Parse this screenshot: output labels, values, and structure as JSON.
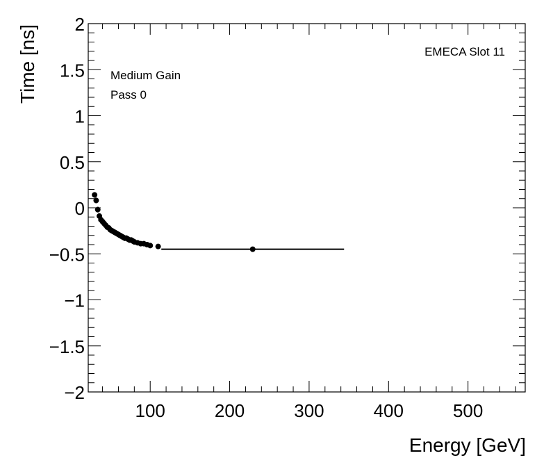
{
  "chart_data": {
    "type": "scatter",
    "title": "",
    "xlabel": "Energy [GeV]",
    "ylabel": "Time [ns]",
    "xlim": [
      22,
      572
    ],
    "ylim": [
      -2,
      2
    ],
    "grid": false,
    "x_major_ticks": [
      100,
      200,
      300,
      400,
      500
    ],
    "x_tick_labels": [
      "100",
      "200",
      "300",
      "400",
      "500"
    ],
    "y_major_ticks": [
      -2,
      -1.5,
      -1,
      -0.5,
      0,
      0.5,
      1,
      1.5,
      2
    ],
    "y_tick_labels": [
      "−2",
      "−1.5",
      "−1",
      "−0.5",
      "0",
      "0.5",
      "1",
      "1.5",
      "2"
    ],
    "annotations": {
      "top_right": "EMECA Slot 11",
      "line1": "Medium Gain",
      "line2": "Pass 0"
    },
    "series": [
      {
        "name": "points",
        "x": [
          30,
          32,
          34,
          36,
          38,
          40,
          42,
          44,
          46,
          48,
          50,
          52,
          54,
          56,
          58,
          60,
          62,
          64,
          66,
          68,
          70,
          72,
          74,
          76,
          78,
          80,
          84,
          88,
          92,
          96,
          100,
          110,
          229
        ],
        "y": [
          0.14,
          0.08,
          -0.02,
          -0.09,
          -0.13,
          -0.15,
          -0.17,
          -0.19,
          -0.21,
          -0.22,
          -0.24,
          -0.25,
          -0.26,
          -0.27,
          -0.28,
          -0.29,
          -0.3,
          -0.31,
          -0.32,
          -0.33,
          -0.33,
          -0.34,
          -0.35,
          -0.35,
          -0.36,
          -0.37,
          -0.38,
          -0.39,
          -0.39,
          -0.4,
          -0.41,
          -0.42,
          -0.45
        ],
        "xerr": [
          1,
          1,
          1,
          1,
          1,
          1,
          1,
          1,
          1,
          1,
          1,
          1,
          1,
          1,
          1,
          1,
          1,
          1,
          1,
          1,
          1,
          1,
          1,
          1,
          1,
          1,
          2,
          2,
          2,
          2,
          2,
          3,
          115
        ],
        "yerr": [
          0.03,
          0.03,
          0.03,
          0.03,
          0.03,
          0.03,
          0.03,
          0.03,
          0.03,
          0.03,
          0.03,
          0.03,
          0.03,
          0.03,
          0.03,
          0.03,
          0.03,
          0.03,
          0.03,
          0.03,
          0.03,
          0.03,
          0.03,
          0.03,
          0.03,
          0.03,
          0.02,
          0.02,
          0.02,
          0.02,
          0.02,
          0.01,
          0.01
        ]
      }
    ]
  }
}
